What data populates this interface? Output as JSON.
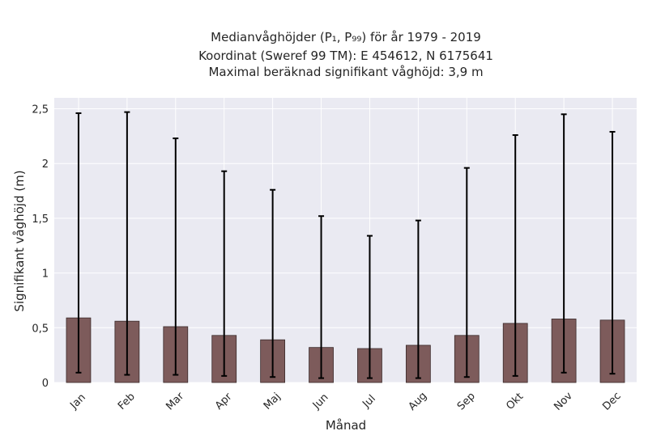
{
  "chart_data": {
    "type": "bar",
    "title_lines": [
      "Medianvåghöjder (P₁, P₉₉) för år 1979 - 2019",
      "Koordinat (Sweref 99 TM): E 454612, N 6175641",
      "Maximal beräknad signifikant våghöjd: 3,9 m"
    ],
    "xlabel": "Månad",
    "ylabel": "Signifikant våghöjd (m)",
    "categories": [
      "Jan",
      "Feb",
      "Mar",
      "Apr",
      "Maj",
      "Jun",
      "Jul",
      "Aug",
      "Sep",
      "Okt",
      "Nov",
      "Dec"
    ],
    "values": [
      0.59,
      0.56,
      0.51,
      0.43,
      0.39,
      0.32,
      0.31,
      0.34,
      0.43,
      0.54,
      0.58,
      0.57
    ],
    "error_low": [
      0.09,
      0.07,
      0.07,
      0.06,
      0.05,
      0.04,
      0.04,
      0.04,
      0.05,
      0.06,
      0.09,
      0.08
    ],
    "error_high": [
      2.46,
      2.47,
      2.23,
      1.93,
      1.76,
      1.52,
      1.34,
      1.48,
      1.96,
      2.26,
      2.45,
      2.29
    ],
    "yticks": [
      0,
      0.5,
      1,
      1.5,
      2,
      2.5
    ],
    "ytick_labels": [
      "0",
      "0,5",
      "1",
      "1,5",
      "2",
      "2,5"
    ],
    "ylim": [
      0,
      2.6
    ],
    "grid": true,
    "colors": {
      "plot_background": "#eaeaf2",
      "grid": "#ffffff",
      "bar_fill": "#7d5b5b",
      "bar_edge": "#3a2a2a",
      "error_bar": "#000000"
    }
  }
}
